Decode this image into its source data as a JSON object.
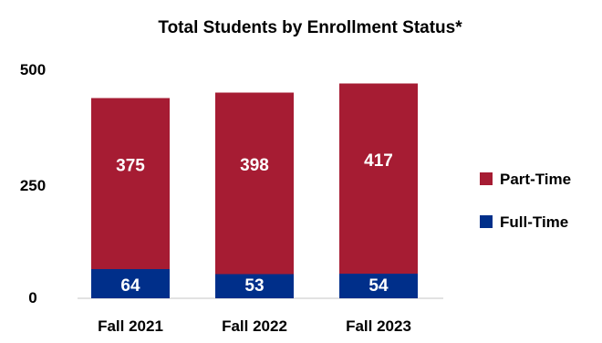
{
  "chart_data": {
    "type": "bar",
    "stacked": true,
    "title": "Total Students by Enrollment Status*",
    "categories": [
      "Fall 2021",
      "Fall 2022",
      "Fall 2023"
    ],
    "series": [
      {
        "name": "Full-Time",
        "values": [
          64,
          53,
          54
        ],
        "color": "#002f8a"
      },
      {
        "name": "Part-Time",
        "values": [
          375,
          398,
          417
        ],
        "color": "#a61c33"
      }
    ],
    "y_ticks": [
      "0",
      "250",
      "500"
    ],
    "ylim": [
      0,
      500
    ],
    "legend_position": "right",
    "legend_order": [
      "Part-Time",
      "Full-Time"
    ],
    "grid": false
  }
}
